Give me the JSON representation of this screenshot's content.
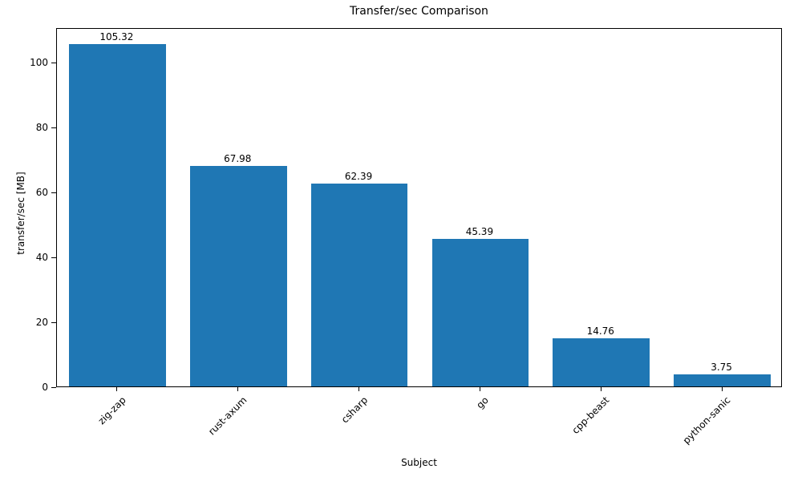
{
  "chart_data": {
    "type": "bar",
    "title": "Transfer/sec Comparison",
    "xlabel": "Subject",
    "ylabel": "transfer/sec [MB]",
    "categories": [
      "zig-zap",
      "rust-axum",
      "csharp",
      "go",
      "cpp-beast",
      "python-sanic"
    ],
    "values": [
      105.32,
      67.98,
      62.39,
      45.39,
      14.76,
      3.75
    ],
    "value_labels": [
      "105.32",
      "67.98",
      "62.39",
      "45.39",
      "14.76",
      "3.75"
    ],
    "bar_color": "#1f77b4",
    "ylim": [
      0,
      110.6
    ],
    "yticks": [
      0,
      20,
      40,
      60,
      80,
      100
    ],
    "grid": false,
    "legend_position": "none",
    "x_tick_rotation_deg": 45
  }
}
